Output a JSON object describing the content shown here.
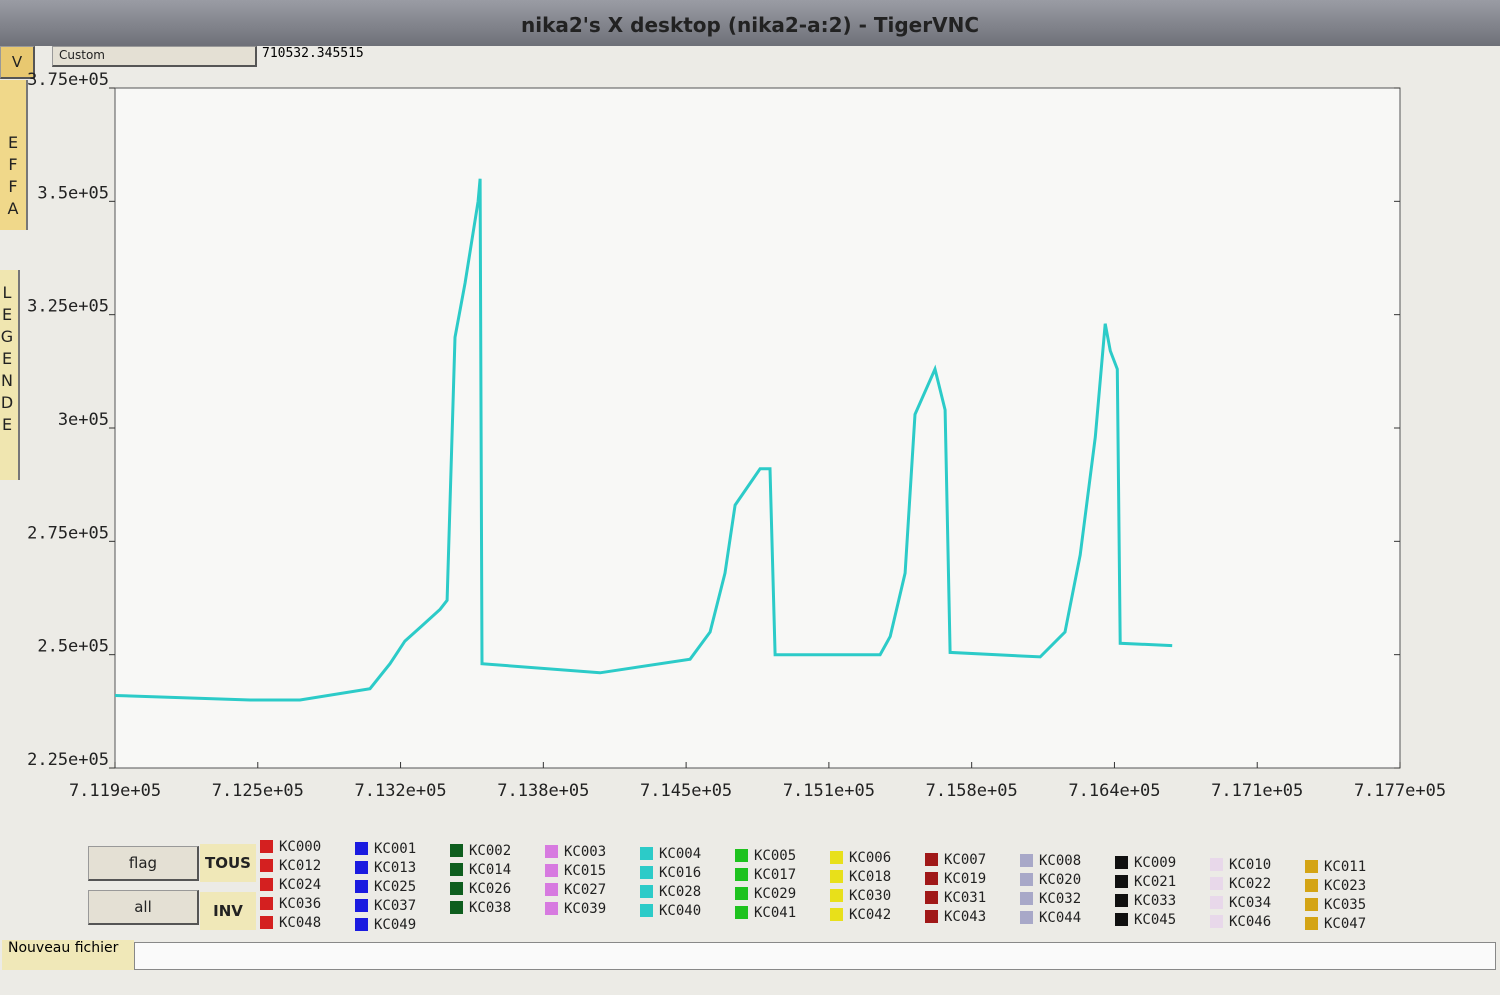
{
  "window_title": "nika2's X desktop (nika2-a:2) - TigerVNC",
  "toolbar": {
    "mode": "Custom",
    "position": "710532.345515"
  },
  "side_buttons": {
    "top": "V",
    "clear": "EFFA",
    "legend": "LEGENDE"
  },
  "buttons": {
    "flag": "flag",
    "all": "all",
    "tous": "TOUS",
    "inv": "INV"
  },
  "status": {
    "new_file": "Nouveau fichier"
  },
  "chart_data": {
    "type": "line",
    "x": [
      711900,
      712515,
      712742,
      713061,
      713152,
      713220,
      713289,
      713380,
      713412,
      713448,
      713494,
      713553,
      713562,
      713571,
      714108,
      714518,
      714609,
      714677,
      714723,
      714837,
      714882,
      714905,
      715383,
      715429,
      715497,
      715542,
      715633,
      715679,
      715702,
      716112,
      716225,
      716294,
      716363,
      716408,
      716431,
      716463,
      716476,
      716713
    ],
    "series": [
      {
        "color": "#2ccbc8",
        "values": [
          241000,
          240000,
          240000,
          242500,
          248000,
          253000,
          256000,
          260000,
          262000,
          320000,
          332000,
          350000,
          355000,
          248000,
          246000,
          249000,
          255000,
          268000,
          283000,
          291000,
          291000,
          250000,
          250000,
          254000,
          268000,
          303000,
          313000,
          304000,
          250500,
          249500,
          255000,
          272000,
          298000,
          323000,
          317000,
          313000,
          252500,
          252000
        ]
      }
    ],
    "xlim": [
      711900,
      717750
    ],
    "ylim": [
      225000,
      375000
    ],
    "xticks": [
      {
        "value": 711900,
        "label": "7.119e+05"
      },
      {
        "value": 712550,
        "label": "7.125e+05"
      },
      {
        "value": 713200,
        "label": "7.132e+05"
      },
      {
        "value": 713850,
        "label": "7.138e+05"
      },
      {
        "value": 714500,
        "label": "7.145e+05"
      },
      {
        "value": 715150,
        "label": "7.151e+05"
      },
      {
        "value": 715800,
        "label": "7.158e+05"
      },
      {
        "value": 716450,
        "label": "7.164e+05"
      },
      {
        "value": 717100,
        "label": "7.171e+05"
      },
      {
        "value": 717750,
        "label": "7.177e+05"
      }
    ],
    "yticks": [
      {
        "value": 225000,
        "label": "2.25e+05"
      },
      {
        "value": 250000,
        "label": "2.5e+05"
      },
      {
        "value": 275000,
        "label": "2.75e+05"
      },
      {
        "value": 300000,
        "label": "3e+05"
      },
      {
        "value": 325000,
        "label": "3.25e+05"
      },
      {
        "value": 350000,
        "label": "3.5e+05"
      },
      {
        "value": 375000,
        "label": "3.75e+05"
      }
    ],
    "grid": false
  },
  "legend_columns": [
    {
      "color": "#d42020",
      "items": [
        "KC000",
        "KC012",
        "KC024",
        "KC036",
        "KC048"
      ]
    },
    {
      "color": "#1a1ae0",
      "items": [
        "KC001",
        "KC013",
        "KC025",
        "KC037",
        "KC049"
      ]
    },
    {
      "color": "#0e5e1e",
      "items": [
        "KC002",
        "KC014",
        "KC026",
        "KC038"
      ]
    },
    {
      "color": "#d77ae0",
      "items": [
        "KC003",
        "KC015",
        "KC027",
        "KC039"
      ]
    },
    {
      "color": "#2ccbc8",
      "items": [
        "KC004",
        "KC016",
        "KC028",
        "KC040"
      ]
    },
    {
      "color": "#1ec21e",
      "items": [
        "KC005",
        "KC017",
        "KC029",
        "KC041"
      ]
    },
    {
      "color": "#e8e01a",
      "items": [
        "KC006",
        "KC018",
        "KC030",
        "KC042"
      ]
    },
    {
      "color": "#a01818",
      "items": [
        "KC007",
        "KC019",
        "KC031",
        "KC043"
      ]
    },
    {
      "color": "#a8a8c8",
      "items": [
        "KC008",
        "KC020",
        "KC032",
        "KC044"
      ]
    },
    {
      "color": "#101010",
      "items": [
        "KC009",
        "KC021",
        "KC033",
        "KC045"
      ]
    },
    {
      "color": "#e8d8ea",
      "items": [
        "KC010",
        "KC022",
        "KC034",
        "KC046"
      ]
    },
    {
      "color": "#d4a414",
      "items": [
        "KC011",
        "KC023",
        "KC035",
        "KC047"
      ]
    }
  ]
}
